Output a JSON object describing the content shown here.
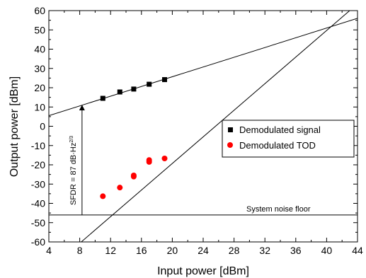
{
  "chart_data": {
    "type": "scatter",
    "xlabel": "Input power [dBm]",
    "ylabel": "Output power [dBm]",
    "xlim": [
      4,
      44
    ],
    "ylim": [
      -60,
      60
    ],
    "xticks": [
      4,
      8,
      12,
      16,
      20,
      24,
      28,
      32,
      36,
      40,
      44
    ],
    "yticks": [
      -60,
      -50,
      -40,
      -30,
      -20,
      -10,
      0,
      10,
      20,
      30,
      40,
      50,
      60
    ],
    "xticks_labels": [
      "4",
      "8",
      "12",
      "16",
      "20",
      "24",
      "28",
      "32",
      "36",
      "40",
      "44"
    ],
    "yticks_labels": [
      "-60",
      "-50",
      "-40",
      "-30",
      "-20",
      "-10",
      "0",
      "10",
      "20",
      "30",
      "40",
      "50",
      "60"
    ],
    "grid": false,
    "legend_position": "right",
    "series": [
      {
        "name": "Demodulated signal",
        "marker": "square",
        "color": "#000000",
        "x": [
          11,
          13.2,
          15,
          17,
          19
        ],
        "y": [
          14.5,
          17.8,
          19.3,
          21.8,
          24.2
        ]
      },
      {
        "name": "Demodulated TOD",
        "marker": "circle",
        "color": "#ff0000",
        "x": [
          11,
          13.2,
          15,
          15,
          17,
          17,
          19
        ],
        "y": [
          -36.3,
          -31.8,
          -25.5,
          -26.1,
          -17.5,
          -18.5,
          -16.7
        ]
      }
    ],
    "fit_lines": [
      {
        "kind": "slope-1 fit",
        "x": [
          4,
          44
        ],
        "y": [
          5.5,
          56.0
        ]
      },
      {
        "kind": "slope-3 fit",
        "x": [
          8.2,
          44
        ],
        "y": [
          -60,
          63.5
        ]
      }
    ],
    "noise_floor": {
      "y": -46,
      "label": "System noise floor"
    },
    "sfdr_arrow": {
      "x": 8.3,
      "y_from": -46,
      "y_to": 10.8
    },
    "annotations": {
      "sfdr_text": "SFDR = 87 dB·Hz",
      "sfdr_exponent": "2/3"
    }
  }
}
